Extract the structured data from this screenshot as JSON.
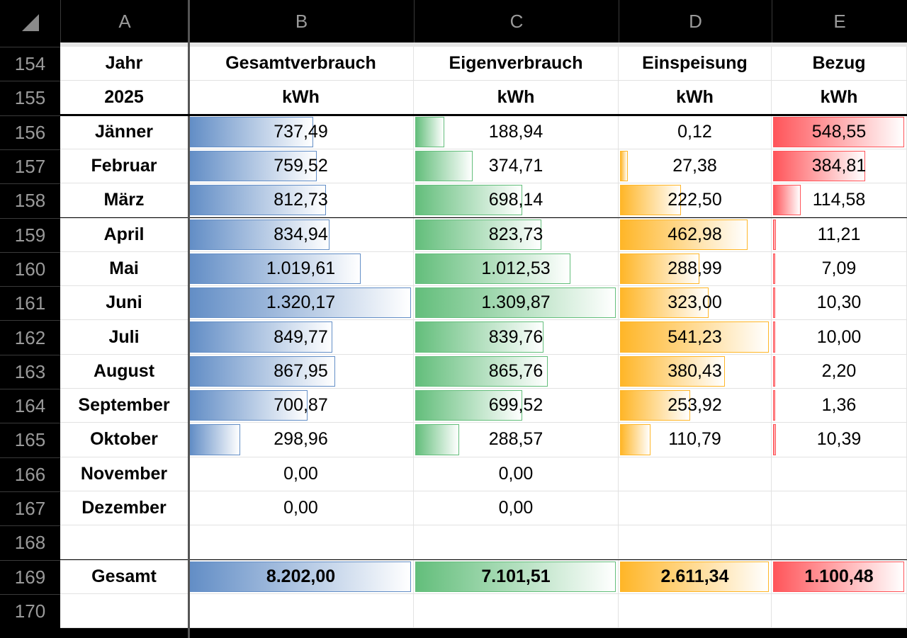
{
  "corner_icon": "select-all-triangle-icon",
  "columns": [
    "A",
    "B",
    "C",
    "D",
    "E"
  ],
  "colors": {
    "B": "#638EC6",
    "C": "#63BE7B",
    "D": "#FFB628",
    "E": "#FF555A"
  },
  "header_rows": [
    {
      "row": "154",
      "cells": [
        "Jahr",
        "Gesamtverbrauch",
        "Eigenverbrauch",
        "Einspeisung",
        "Bezug"
      ]
    },
    {
      "row": "155",
      "cells": [
        "2025",
        "kWh",
        "kWh",
        "kWh",
        "kWh"
      ]
    }
  ],
  "data_rows": [
    {
      "row": "156",
      "month": "Jänner",
      "values": [
        "737,49",
        "188,94",
        "0,12",
        "548,55"
      ]
    },
    {
      "row": "157",
      "month": "Februar",
      "values": [
        "759,52",
        "374,71",
        "27,38",
        "384,81"
      ]
    },
    {
      "row": "158",
      "month": "März",
      "values": [
        "812,73",
        "698,14",
        "222,50",
        "114,58"
      ]
    },
    {
      "row": "159",
      "month": "April",
      "values": [
        "834,94",
        "823,73",
        "462,98",
        "11,21"
      ]
    },
    {
      "row": "160",
      "month": "Mai",
      "values": [
        "1.019,61",
        "1.012,53",
        "288,99",
        "7,09"
      ]
    },
    {
      "row": "161",
      "month": "Juni",
      "values": [
        "1.320,17",
        "1.309,87",
        "323,00",
        "10,30"
      ]
    },
    {
      "row": "162",
      "month": "Juli",
      "values": [
        "849,77",
        "839,76",
        "541,23",
        "10,00"
      ]
    },
    {
      "row": "163",
      "month": "August",
      "values": [
        "867,95",
        "865,76",
        "380,43",
        "2,20"
      ]
    },
    {
      "row": "164",
      "month": "September",
      "values": [
        "700,87",
        "699,52",
        "253,92",
        "1,36"
      ]
    },
    {
      "row": "165",
      "month": "Oktober",
      "values": [
        "298,96",
        "288,57",
        "110,79",
        "10,39"
      ]
    },
    {
      "row": "166",
      "month": "November",
      "values": [
        "0,00",
        "0,00",
        "",
        ""
      ]
    },
    {
      "row": "167",
      "month": "Dezember",
      "values": [
        "0,00",
        "0,00",
        "",
        ""
      ]
    },
    {
      "row": "168",
      "month": "",
      "values": [
        "",
        "",
        "",
        ""
      ]
    },
    {
      "row": "169",
      "month": "Gesamt",
      "values": [
        "8.202,00",
        "7.101,51",
        "2.611,34",
        "1.100,48"
      ],
      "total": true
    },
    {
      "row": "170",
      "month": "",
      "values": [
        "",
        "",
        "",
        ""
      ]
    }
  ]
}
